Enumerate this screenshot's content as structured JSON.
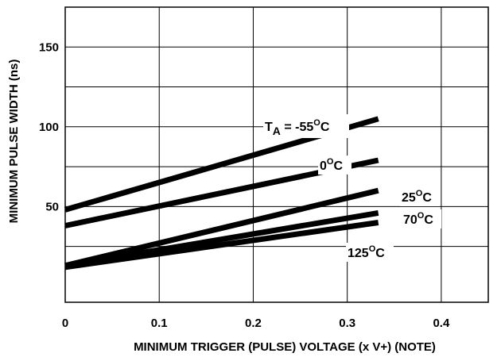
{
  "chart_data": {
    "type": "line",
    "xlabel": "MINIMUM TRIGGER (PULSE) VOLTAGE (x V+) (NOTE)",
    "ylabel": "MINIMUM PULSE WIDTH (ns)",
    "xlim": [
      0,
      0.45
    ],
    "ylim": [
      -10,
      175
    ],
    "grid": true,
    "x_ticks": [
      0,
      0.1,
      0.2,
      0.3,
      0.4
    ],
    "x_tick_labels": [
      "0",
      "0.1",
      "0.2",
      "0.3",
      "0.4"
    ],
    "y_ticks": [
      50,
      100,
      150
    ],
    "y_tick_labels": [
      "50",
      "100",
      "150"
    ],
    "series": [
      {
        "name": "-55°C",
        "x": [
          0,
          0.333
        ],
        "y": [
          48,
          105
        ]
      },
      {
        "name": "0°C",
        "x": [
          0,
          0.333
        ],
        "y": [
          38,
          79
        ]
      },
      {
        "name": "25°C",
        "x": [
          0,
          0.333
        ],
        "y": [
          13,
          60
        ]
      },
      {
        "name": "70°C",
        "x": [
          0,
          0.333
        ],
        "y": [
          13,
          46
        ]
      },
      {
        "name": "125°C",
        "x": [
          0,
          0.333
        ],
        "y": [
          12,
          40
        ]
      }
    ],
    "annotations": {
      "ta_prefix": "T",
      "ta_subscript": "A",
      "ta_value": " = -55",
      "zero": "0",
      "t25": "25",
      "t70": "70",
      "t125": "125",
      "degree_mark": "O",
      "unit": "C"
    }
  }
}
